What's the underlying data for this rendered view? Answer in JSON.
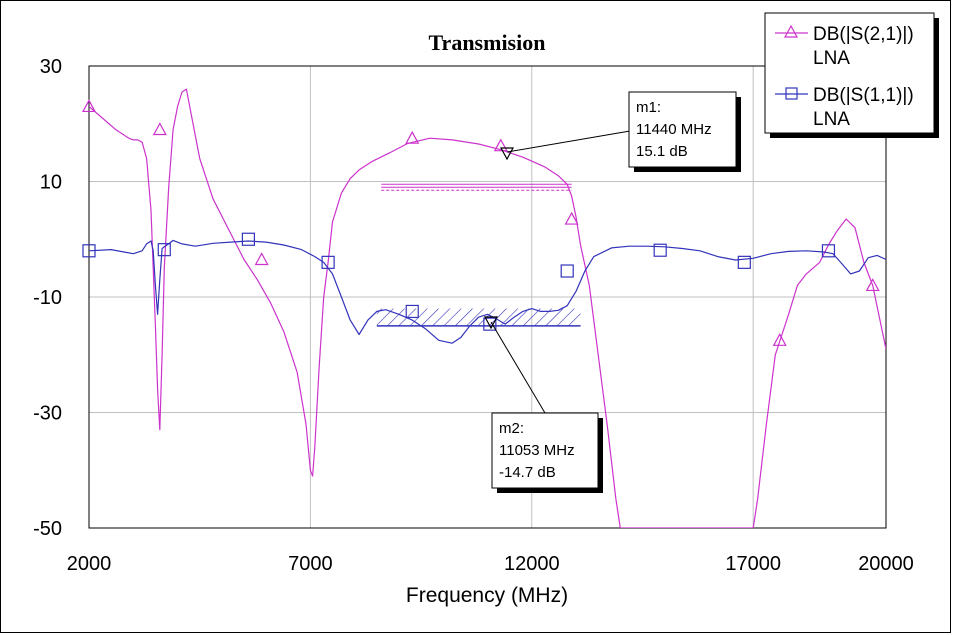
{
  "chart_data": {
    "type": "line",
    "title": "Transmision",
    "xlabel": "Frequency (MHz)",
    "ylabel": "",
    "xlim": [
      2000,
      20000
    ],
    "ylim": [
      -50,
      30
    ],
    "x_ticks": [
      "2000",
      "7000",
      "12000",
      "17000",
      "20000"
    ],
    "y_ticks": [
      "30",
      "10",
      "-10",
      "-30",
      "-50"
    ],
    "grid": true,
    "legend_position": "top-right",
    "series": [
      {
        "name": "DB(|S(2,1)|)",
        "name2": "LNA",
        "color": "#cc33cc",
        "marker": "triangle",
        "x": [
          2000,
          2300,
          2600,
          2900,
          3000,
          3100,
          3200,
          3300,
          3400,
          3500,
          3550,
          3600,
          3650,
          3700,
          3800,
          3900,
          4000,
          4100,
          4200,
          4300,
          4500,
          4800,
          5200,
          5500,
          5800,
          6100,
          6400,
          6700,
          6900,
          7000,
          7050,
          7100,
          7200,
          7300,
          7400,
          7500,
          7700,
          7900,
          8100,
          8400,
          8800,
          9200,
          9700,
          10200,
          10800,
          11300,
          11800,
          12300,
          12600,
          12800,
          12900,
          13000,
          13100,
          13300,
          13500,
          13700,
          13900,
          14000,
          17000,
          17100,
          17300,
          17500,
          17800,
          18000,
          18200,
          18500,
          18700,
          18900,
          19100,
          19300,
          19500,
          19700,
          20000
        ],
        "y": [
          23,
          21,
          19,
          17.5,
          17.2,
          17.2,
          16.8,
          14,
          5,
          -15,
          -26,
          -33,
          -20,
          -5,
          9,
          19,
          23,
          25.5,
          26,
          22,
          14,
          7,
          1,
          -3.5,
          -7,
          -11,
          -16,
          -23,
          -32,
          -40,
          -41,
          -36,
          -22,
          -10,
          -4,
          3,
          8,
          10.5,
          12,
          13.5,
          15,
          16.6,
          17.5,
          17.2,
          16.5,
          15.5,
          14.2,
          12.5,
          11,
          9.5,
          7.5,
          3.8,
          -1,
          -8,
          -20,
          -32,
          -45,
          -50,
          -50,
          -45,
          -32,
          -20,
          -13,
          -8,
          -6,
          -4,
          -1,
          1.5,
          3.5,
          2,
          -4,
          -8,
          -19
        ],
        "markers": [
          [
            2000,
            23
          ],
          [
            3600,
            19
          ],
          [
            5900,
            -3.5
          ],
          [
            9300,
            17.5
          ],
          [
            11300,
            16.2
          ],
          [
            12900,
            3.5
          ],
          [
            17600,
            -17.5
          ],
          [
            19700,
            -8
          ]
        ]
      },
      {
        "name": "DB(|S(1,1)|)",
        "name2": "LNA",
        "color": "#3333bb",
        "marker": "square",
        "x": [
          2000,
          2500,
          3000,
          3200,
          3300,
          3400,
          3450,
          3500,
          3550,
          3600,
          3650,
          3700,
          3800,
          3900,
          4100,
          4400,
          4800,
          5200,
          5600,
          6000,
          6400,
          6800,
          7100,
          7300,
          7500,
          7700,
          7900,
          8100,
          8300,
          8500,
          8700,
          9000,
          9300,
          9600,
          9900,
          10200,
          10400,
          10600,
          10800,
          11000,
          11200,
          11400,
          11600,
          11800,
          12000,
          12200,
          12400,
          12600,
          12800,
          13000,
          13200,
          13400,
          13800,
          14200,
          14600,
          15000,
          15400,
          15800,
          16200,
          16600,
          17000,
          17400,
          17800,
          18200,
          18600,
          18800,
          19000,
          19200,
          19400,
          19600,
          19800,
          20000
        ],
        "y": [
          -2,
          -1.8,
          -2.5,
          -2,
          -0.8,
          -0.3,
          -2,
          -8,
          -13,
          -7,
          -1.6,
          -1.3,
          -0.8,
          -0.2,
          -0.8,
          -1.2,
          -0.7,
          -0.5,
          -0.3,
          -0.5,
          -1,
          -1.8,
          -3,
          -4,
          -6,
          -10,
          -14,
          -16.5,
          -14,
          -12.5,
          -12.2,
          -13,
          -14,
          -15.5,
          -17.5,
          -18,
          -17,
          -15,
          -13.5,
          -13,
          -13.8,
          -14.7,
          -13.5,
          -12.5,
          -12,
          -12.5,
          -12.5,
          -12.3,
          -11.5,
          -9,
          -5.5,
          -3,
          -1.5,
          -1.2,
          -1.2,
          -1.3,
          -1.6,
          -2,
          -3,
          -3.6,
          -3.3,
          -2.5,
          -2.1,
          -2,
          -2.2,
          -2.5,
          -4.2,
          -6,
          -5.5,
          -3.2,
          -2.8,
          -3.5
        ],
        "markers": [
          [
            2000,
            -2
          ],
          [
            3700,
            -1.8
          ],
          [
            5600,
            0
          ],
          [
            7400,
            -4
          ],
          [
            9300,
            -12.5
          ],
          [
            11053,
            -14.7
          ],
          [
            12800,
            -5.5
          ],
          [
            14900,
            -1.9
          ],
          [
            16800,
            -4
          ],
          [
            18700,
            -2
          ]
        ]
      }
    ],
    "marker_labels": [
      {
        "name": "m1:",
        "freq": "11440 MHz",
        "value": "15.1 dB",
        "x": 11440,
        "y": 15.1
      },
      {
        "name": "m2:",
        "freq": "11053 MHz",
        "value": "-14.7 dB",
        "x": 11053,
        "y": -14.7
      }
    ],
    "spec_lines": [
      {
        "series": "DB(|S(2,1)|)",
        "x1": 8600,
        "x2": 12900,
        "y": 9
      },
      {
        "series": "DB(|S(1,1)|)",
        "x1": 8500,
        "x2": 13100,
        "y": -15,
        "hatched_to": -12
      }
    ]
  }
}
